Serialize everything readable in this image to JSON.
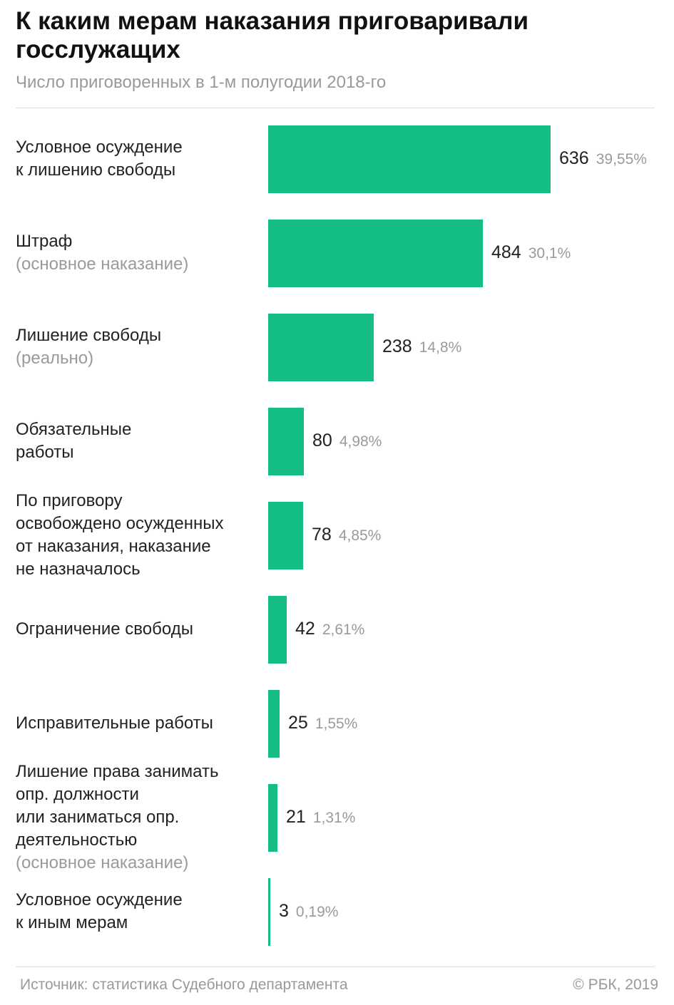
{
  "title": "К каким мерам наказания приговаривали госслужащих",
  "subtitle": "Число приговоренных в 1-м полугодии 2018-го",
  "source": "Источник: статистика Судебного департамента",
  "copyright": "© РБК, 2019",
  "colors": {
    "bar": "#13bd85",
    "note": "#9a9a9a"
  },
  "chart_data": {
    "type": "bar",
    "orientation": "horizontal",
    "title": "К каким мерам наказания приговаривали госслужащих",
    "subtitle": "Число приговоренных в 1-м полугодии 2018-го",
    "xlim": [
      0,
      636
    ],
    "categories": [
      {
        "main": "Условное осуждение\nк лишению свободы",
        "note": ""
      },
      {
        "main": "Штраф",
        "note": "(основное наказание)"
      },
      {
        "main": "Лишение свободы",
        "note": "(реально)"
      },
      {
        "main": "Обязательные\nработы",
        "note": ""
      },
      {
        "main": "По приговору\nосвобождено осужденных\nот наказания, наказание\nне назначалось",
        "note": ""
      },
      {
        "main": "Ограничение свободы",
        "note": ""
      },
      {
        "main": "Исправительные работы",
        "note": ""
      },
      {
        "main": "Лишение права занимать\nопр. должности\nили заниматься опр.\nдеятельностью",
        "note": "(основное наказание)"
      },
      {
        "main": "Условное осуждение\nк иным мерам",
        "note": ""
      }
    ],
    "values": [
      636,
      484,
      238,
      80,
      78,
      42,
      25,
      21,
      3
    ],
    "percent_labels": [
      "39,55%",
      "30,1%",
      "14,8%",
      "4,98%",
      "4,85%",
      "2,61%",
      "1,55%",
      "1,31%",
      "0,19%"
    ]
  }
}
